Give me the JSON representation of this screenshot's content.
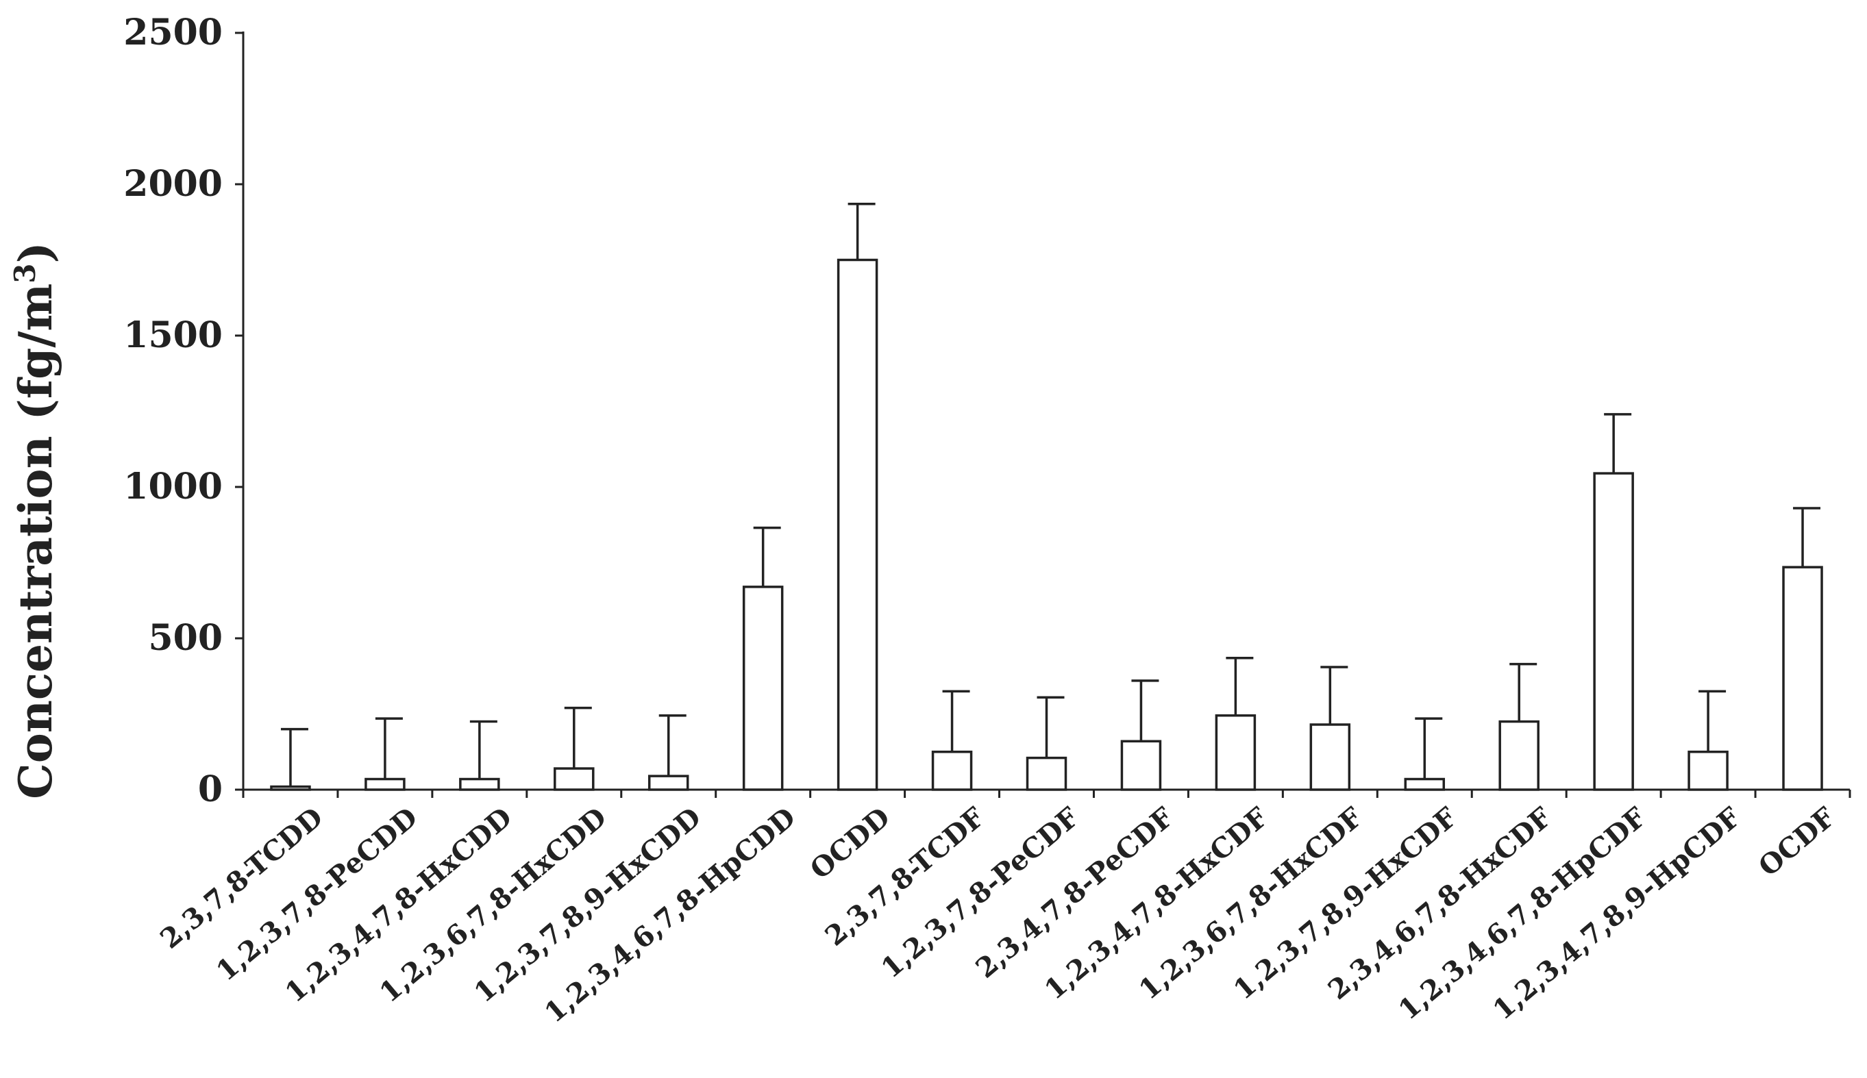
{
  "chart_data": {
    "type": "bar",
    "ylabel": "Concentration (fg/m",
    "ylabel_superscript": "3",
    "ylabel_close": ")",
    "ylim": [
      0,
      2500
    ],
    "yticks": [
      0,
      500,
      1000,
      1500,
      2000,
      2500
    ],
    "grid": false,
    "categories": [
      "2,3,7,8-TCDD",
      "1,2,3,7,8-PeCDD",
      "1,2,3,4,7,8-HxCDD",
      "1,2,3,6,7,8-HxCDD",
      "1,2,3,7,8,9-HxCDD",
      "1,2,3,4,6,7,8-HpCDD",
      "OCDD",
      "2,3,7,8-TCDF",
      "1,2,3,7,8-PeCDF",
      "2,3,4,7,8-PeCDF",
      "1,2,3,4,7,8-HxCDF",
      "1,2,3,6,7,8-HxCDF",
      "1,2,3,7,8,9-HxCDF",
      "2,3,4,6,7,8-HxCDF",
      "1,2,3,4,6,7,8-HpCDF",
      "1,2,3,4,7,8,9-HpCDF",
      "OCDF"
    ],
    "values": [
      10,
      35,
      35,
      70,
      45,
      670,
      1750,
      125,
      105,
      160,
      245,
      215,
      35,
      225,
      1045,
      125,
      735
    ],
    "errors": [
      190,
      200,
      190,
      200,
      200,
      195,
      185,
      200,
      200,
      200,
      190,
      190,
      200,
      190,
      195,
      200,
      195
    ]
  }
}
